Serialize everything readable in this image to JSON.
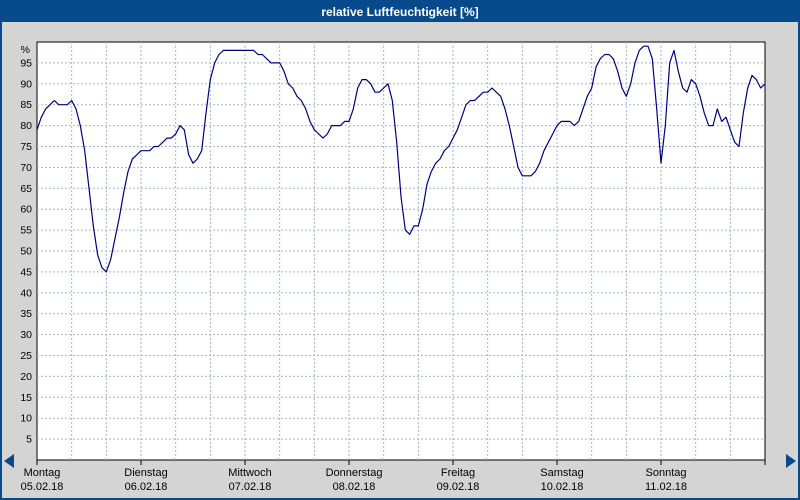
{
  "window": {
    "title": "relative Luftfeuchtigkeit [%]"
  },
  "colors": {
    "titlebar_bg": "#064a8c",
    "outer_bg": "#d4d4d4",
    "plot_bg": "#ffffff",
    "frame": "#000000",
    "grid": "#a0b6c8",
    "line": "#000080",
    "arrow": "#064a8c"
  },
  "nav": {
    "left_arrow": "scroll-left",
    "right_arrow": "scroll-right"
  },
  "chart_data": {
    "type": "line",
    "title": "relative Luftfeuchtigkeit [%]",
    "ylabel": "%",
    "y_unit": "%",
    "ylim": [
      0,
      100
    ],
    "y_tick_step": 5,
    "y_ticks": [
      5,
      10,
      15,
      20,
      25,
      30,
      35,
      40,
      45,
      50,
      55,
      60,
      65,
      70,
      75,
      80,
      85,
      90,
      95
    ],
    "x_total_hours": 168,
    "x_gridline_every_hours": 8,
    "grid": true,
    "legend_position": "none",
    "days": [
      {
        "name": "Montag",
        "date": "05.02.18"
      },
      {
        "name": "Dienstag",
        "date": "06.02.18"
      },
      {
        "name": "Mittwoch",
        "date": "07.02.18"
      },
      {
        "name": "Donnerstag",
        "date": "08.02.18"
      },
      {
        "name": "Freitag",
        "date": "09.02.18"
      },
      {
        "name": "Samstag",
        "date": "10.02.18"
      },
      {
        "name": "Sonntag",
        "date": "11.02.18"
      }
    ],
    "series": [
      {
        "name": "relative Luftfeuchtigkeit",
        "unit": "%",
        "points": [
          [
            0,
            79
          ],
          [
            1,
            82
          ],
          [
            2,
            84
          ],
          [
            3,
            85
          ],
          [
            4,
            86
          ],
          [
            5,
            85
          ],
          [
            6,
            85
          ],
          [
            7,
            85
          ],
          [
            8,
            86
          ],
          [
            9,
            84
          ],
          [
            10,
            80
          ],
          [
            11,
            74
          ],
          [
            12,
            65
          ],
          [
            13,
            56
          ],
          [
            14,
            49
          ],
          [
            15,
            46
          ],
          [
            16,
            45
          ],
          [
            17,
            48
          ],
          [
            18,
            53
          ],
          [
            19,
            58
          ],
          [
            20,
            64
          ],
          [
            21,
            69
          ],
          [
            22,
            72
          ],
          [
            23,
            73
          ],
          [
            24,
            74
          ],
          [
            25,
            74
          ],
          [
            26,
            74
          ],
          [
            27,
            75
          ],
          [
            28,
            75
          ],
          [
            29,
            76
          ],
          [
            30,
            77
          ],
          [
            31,
            77
          ],
          [
            32,
            78
          ],
          [
            33,
            80
          ],
          [
            34,
            79
          ],
          [
            35,
            73
          ],
          [
            36,
            71
          ],
          [
            37,
            72
          ],
          [
            38,
            74
          ],
          [
            39,
            83
          ],
          [
            40,
            91
          ],
          [
            41,
            95
          ],
          [
            42,
            97
          ],
          [
            43,
            98
          ],
          [
            44,
            98
          ],
          [
            45,
            98
          ],
          [
            46,
            98
          ],
          [
            47,
            98
          ],
          [
            48,
            98
          ],
          [
            49,
            98
          ],
          [
            50,
            98
          ],
          [
            51,
            97
          ],
          [
            52,
            97
          ],
          [
            53,
            96
          ],
          [
            54,
            95
          ],
          [
            55,
            95
          ],
          [
            56,
            95
          ],
          [
            57,
            93
          ],
          [
            58,
            90
          ],
          [
            59,
            89
          ],
          [
            60,
            87
          ],
          [
            61,
            86
          ],
          [
            62,
            84
          ],
          [
            63,
            81
          ],
          [
            64,
            79
          ],
          [
            65,
            78
          ],
          [
            66,
            77
          ],
          [
            67,
            78
          ],
          [
            68,
            80
          ],
          [
            69,
            80
          ],
          [
            70,
            80
          ],
          [
            71,
            81
          ],
          [
            72,
            81
          ],
          [
            73,
            84
          ],
          [
            74,
            89
          ],
          [
            75,
            91
          ],
          [
            76,
            91
          ],
          [
            77,
            90
          ],
          [
            78,
            88
          ],
          [
            79,
            88
          ],
          [
            80,
            89
          ],
          [
            81,
            90
          ],
          [
            82,
            86
          ],
          [
            83,
            76
          ],
          [
            84,
            63
          ],
          [
            85,
            55
          ],
          [
            86,
            54
          ],
          [
            87,
            56
          ],
          [
            88,
            56
          ],
          [
            89,
            60
          ],
          [
            90,
            66
          ],
          [
            91,
            69
          ],
          [
            92,
            71
          ],
          [
            93,
            72
          ],
          [
            94,
            74
          ],
          [
            95,
            75
          ],
          [
            96,
            77
          ],
          [
            97,
            79
          ],
          [
            98,
            82
          ],
          [
            99,
            85
          ],
          [
            100,
            86
          ],
          [
            101,
            86
          ],
          [
            102,
            87
          ],
          [
            103,
            88
          ],
          [
            104,
            88
          ],
          [
            105,
            89
          ],
          [
            106,
            88
          ],
          [
            107,
            87
          ],
          [
            108,
            84
          ],
          [
            109,
            80
          ],
          [
            110,
            75
          ],
          [
            111,
            70
          ],
          [
            112,
            68
          ],
          [
            113,
            68
          ],
          [
            114,
            68
          ],
          [
            115,
            69
          ],
          [
            116,
            71
          ],
          [
            117,
            74
          ],
          [
            118,
            76
          ],
          [
            119,
            78
          ],
          [
            120,
            80
          ],
          [
            121,
            81
          ],
          [
            122,
            81
          ],
          [
            123,
            81
          ],
          [
            124,
            80
          ],
          [
            125,
            81
          ],
          [
            126,
            84
          ],
          [
            127,
            87
          ],
          [
            128,
            89
          ],
          [
            129,
            94
          ],
          [
            130,
            96
          ],
          [
            131,
            97
          ],
          [
            132,
            97
          ],
          [
            133,
            96
          ],
          [
            134,
            93
          ],
          [
            135,
            89
          ],
          [
            136,
            87
          ],
          [
            137,
            90
          ],
          [
            138,
            95
          ],
          [
            139,
            98
          ],
          [
            140,
            99
          ],
          [
            141,
            99
          ],
          [
            142,
            96
          ],
          [
            143,
            84
          ],
          [
            144,
            71
          ],
          [
            145,
            80
          ],
          [
            146,
            95
          ],
          [
            147,
            98
          ],
          [
            148,
            93
          ],
          [
            149,
            89
          ],
          [
            150,
            88
          ],
          [
            151,
            91
          ],
          [
            152,
            90
          ],
          [
            153,
            87
          ],
          [
            154,
            83
          ],
          [
            155,
            80
          ],
          [
            156,
            80
          ],
          [
            157,
            84
          ],
          [
            158,
            81
          ],
          [
            159,
            82
          ],
          [
            160,
            79
          ],
          [
            161,
            76
          ],
          [
            162,
            75
          ],
          [
            163,
            83
          ],
          [
            164,
            89
          ],
          [
            165,
            92
          ],
          [
            166,
            91
          ],
          [
            167,
            89
          ],
          [
            168,
            90
          ]
        ]
      }
    ]
  }
}
